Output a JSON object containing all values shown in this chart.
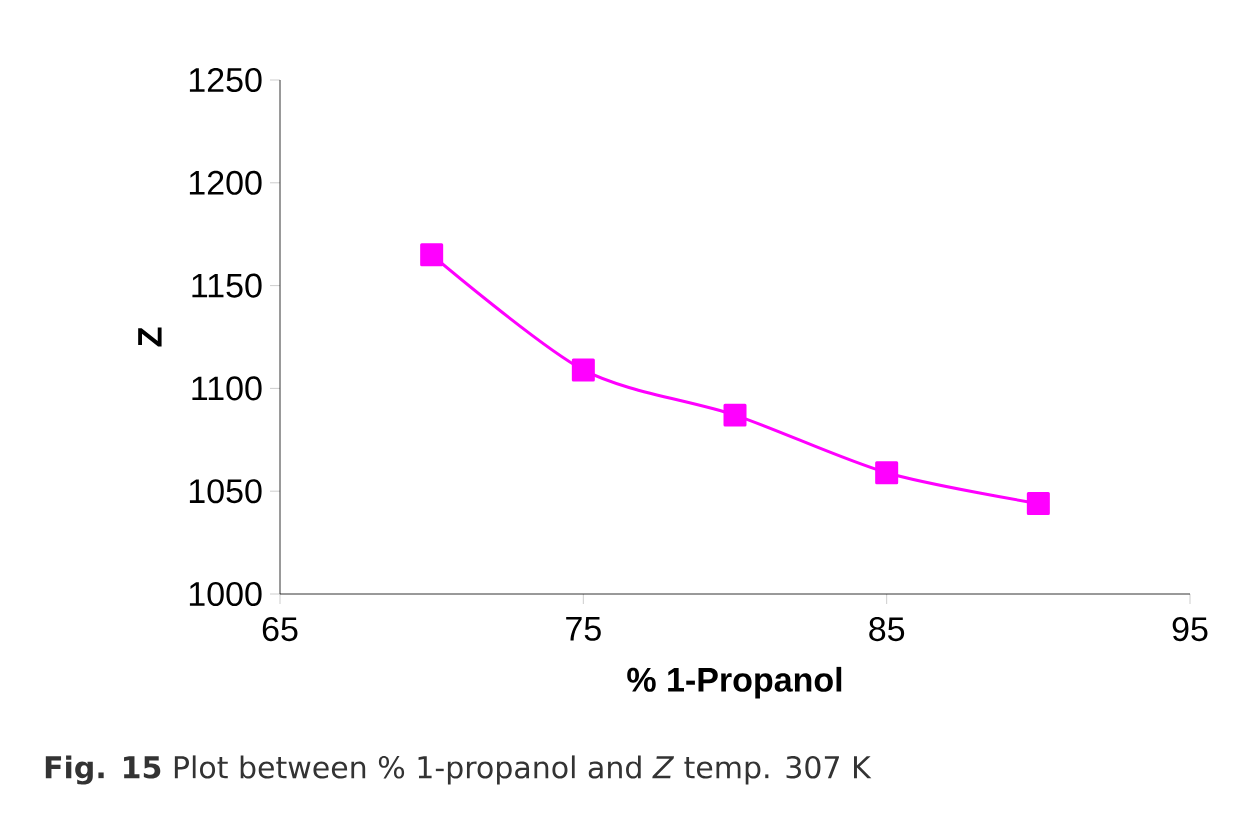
{
  "chart_data": {
    "type": "line",
    "xlabel": "% 1-Propanol",
    "ylabel": "Z",
    "x": [
      70,
      75,
      80,
      85,
      90
    ],
    "series": [
      {
        "color": "#ff00ff",
        "values": [
          1165,
          1109,
          1087,
          1059,
          1044
        ]
      }
    ],
    "xlim": [
      65,
      95
    ],
    "xticks": [
      65,
      75,
      85,
      95
    ],
    "ylim": [
      1000,
      1250
    ],
    "yticks": [
      1000,
      1050,
      1100,
      1150,
      1200,
      1250
    ],
    "grid": false,
    "marker": "square",
    "line_style": "solid",
    "annotations": [
      "**Fig. 15** Plot between % 1-propanol and *Z* temp. 307 K"
    ]
  }
}
